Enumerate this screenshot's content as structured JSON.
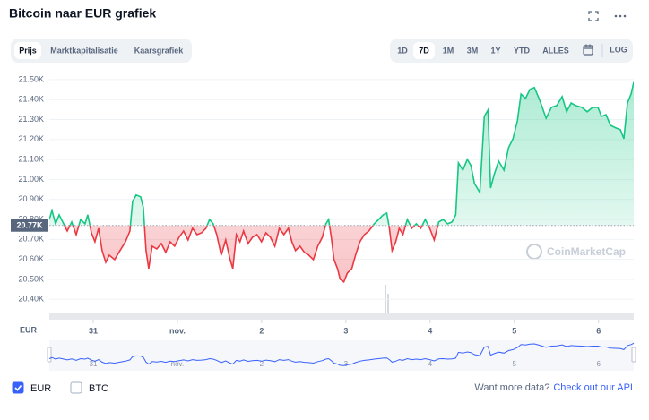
{
  "header": {
    "title": "Bitcoin naar EUR grafiek"
  },
  "tabs": [
    {
      "label": "Prijs",
      "selected": true
    },
    {
      "label": "Marktkapitalisatie",
      "selected": false
    },
    {
      "label": "Kaarsgrafiek",
      "selected": false
    }
  ],
  "ranges": [
    {
      "label": "1D",
      "selected": false
    },
    {
      "label": "7D",
      "selected": true
    },
    {
      "label": "1M",
      "selected": false
    },
    {
      "label": "3M",
      "selected": false
    },
    {
      "label": "1Y",
      "selected": false
    },
    {
      "label": "YTD",
      "selected": false
    },
    {
      "label": "ALLES",
      "selected": false
    }
  ],
  "log_label": "LOG",
  "currency_axis_label": "EUR",
  "watermark": "CoinMarketCap",
  "chart_data": {
    "type": "line",
    "x": [
      -0.521,
      -0.489,
      -0.446,
      -0.404,
      -0.361,
      -0.308,
      -0.255,
      -0.202,
      -0.149,
      -0.096,
      -0.064,
      -0.021,
      0.021,
      0.064,
      0.106,
      0.149,
      0.191,
      0.255,
      0.319,
      0.383,
      0.436,
      0.468,
      0.51,
      0.563,
      0.595,
      0.627,
      0.659,
      0.701,
      0.755,
      0.808,
      0.861,
      0.914,
      0.967,
      1.02,
      1.073,
      1.126,
      1.18,
      1.233,
      1.286,
      1.339,
      1.382,
      1.424,
      1.467,
      1.52,
      1.573,
      1.626,
      1.658,
      1.7,
      1.743,
      1.785,
      1.838,
      1.892,
      1.945,
      1.998,
      2.051,
      2.104,
      2.157,
      2.21,
      2.264,
      2.317,
      2.359,
      2.402,
      2.455,
      2.508,
      2.561,
      2.614,
      2.667,
      2.721,
      2.763,
      2.795,
      2.827,
      2.859,
      2.901,
      2.933,
      2.976,
      3.018,
      3.071,
      3.114,
      3.167,
      3.22,
      3.273,
      3.337,
      3.39,
      3.443,
      3.486,
      3.517,
      3.549,
      3.592,
      3.634,
      3.677,
      3.73,
      3.783,
      3.836,
      3.889,
      3.943,
      3.996,
      4.049,
      4.102,
      4.155,
      4.208,
      4.261,
      4.304,
      4.336,
      4.389,
      4.442,
      4.484,
      4.527,
      4.591,
      4.644,
      4.687,
      4.718,
      4.761,
      4.814,
      4.877,
      4.931,
      4.984,
      5.037,
      5.079,
      5.133,
      5.186,
      5.239,
      5.302,
      5.377,
      5.441,
      5.504,
      5.568,
      5.621,
      5.675,
      5.728,
      5.802,
      5.866,
      5.93,
      5.993,
      6.035,
      6.088,
      6.142,
      6.206,
      6.259,
      6.301,
      6.344,
      6.386,
      6.418
    ],
    "series": [
      {
        "color_above": "#16c784",
        "color_below": "#ea3943",
        "values": [
          20.8,
          20.845,
          20.778,
          20.823,
          20.787,
          20.742,
          20.787,
          20.724,
          20.8,
          20.778,
          20.823,
          20.733,
          20.688,
          20.756,
          20.644,
          20.585,
          20.621,
          20.599,
          20.644,
          20.688,
          20.742,
          20.89,
          20.922,
          20.913,
          20.859,
          20.644,
          20.554,
          20.666,
          20.652,
          20.679,
          20.635,
          20.688,
          20.666,
          20.711,
          20.742,
          20.697,
          20.756,
          20.724,
          20.733,
          20.756,
          20.8,
          20.778,
          20.724,
          20.621,
          20.697,
          20.599,
          20.554,
          20.724,
          20.688,
          20.742,
          20.679,
          20.711,
          20.724,
          20.688,
          20.733,
          20.711,
          20.666,
          20.756,
          20.724,
          20.756,
          20.688,
          20.644,
          20.666,
          20.635,
          20.621,
          20.599,
          20.666,
          20.711,
          20.778,
          20.8,
          20.711,
          20.599,
          20.554,
          20.5,
          20.487,
          20.531,
          20.554,
          20.621,
          20.688,
          20.724,
          20.742,
          20.778,
          20.8,
          20.823,
          20.832,
          20.756,
          20.644,
          20.688,
          20.756,
          20.724,
          20.8,
          20.756,
          20.778,
          20.756,
          20.8,
          20.756,
          20.697,
          20.787,
          20.8,
          20.778,
          20.787,
          20.823,
          21.083,
          21.047,
          21.101,
          21.07,
          20.98,
          20.935,
          21.316,
          21.348,
          20.957,
          21.025,
          21.092,
          21.047,
          21.159,
          21.204,
          21.294,
          21.428,
          21.406,
          21.451,
          21.46,
          21.397,
          21.307,
          21.361,
          21.37,
          21.415,
          21.339,
          21.383,
          21.37,
          21.361,
          21.339,
          21.361,
          21.361,
          21.316,
          21.325,
          21.271,
          21.258,
          21.249,
          21.204,
          21.383,
          21.428,
          21.487
        ]
      }
    ],
    "baseline": {
      "value": 20.77,
      "label": "20.77K"
    },
    "xlim": [
      -0.521,
      6.418
    ],
    "xticks": [
      {
        "value": 0,
        "label": "31"
      },
      {
        "value": 1,
        "label": "nov."
      },
      2,
      3,
      4,
      5,
      6
    ],
    "ylim": [
      20.298,
      21.54
    ],
    "yticks": [
      {
        "value": 21.5,
        "label": "21.50K"
      },
      {
        "value": 21.4,
        "label": "21.40K"
      },
      {
        "value": 21.3,
        "label": "21.30K"
      },
      {
        "value": 21.2,
        "label": "21.20K"
      },
      {
        "value": 21.1,
        "label": "21.10K"
      },
      {
        "value": 21.0,
        "label": "21.00K"
      },
      {
        "value": 20.9,
        "label": "20.90K"
      },
      {
        "value": 20.8,
        "label": "20.80K"
      },
      {
        "value": 20.7,
        "label": "20.70K"
      },
      {
        "value": 20.6,
        "label": "20.60K"
      },
      {
        "value": 20.5,
        "label": "20.50K"
      },
      {
        "value": 20.4,
        "label": "20.40K"
      }
    ],
    "grid": true,
    "navigator_color": "#3861fb"
  },
  "footer": {
    "currencies": [
      {
        "label": "EUR",
        "checked": true
      },
      {
        "label": "BTC",
        "checked": false
      }
    ],
    "prompt": "Want more data?",
    "link": "Check out our API"
  }
}
